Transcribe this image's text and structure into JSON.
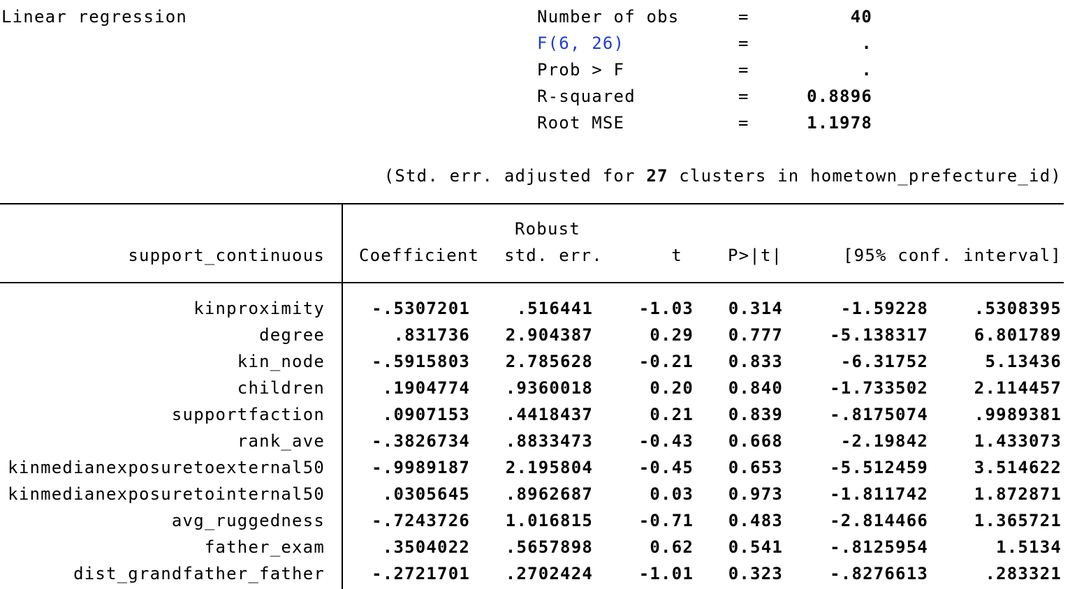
{
  "title": "Linear regression",
  "stats": [
    {
      "label": "Number of obs",
      "eq": "=",
      "value": "40",
      "link": false
    },
    {
      "label": "F(6, 26)",
      "eq": "=",
      "value": ".",
      "link": true
    },
    {
      "label": "Prob > F",
      "eq": "=",
      "value": ".",
      "link": false
    },
    {
      "label": "R-squared",
      "eq": "=",
      "value": "0.8896",
      "link": false
    },
    {
      "label": "Root MSE",
      "eq": "=",
      "value": "1.1978",
      "link": false
    }
  ],
  "note": {
    "prefix": "(Std. err. adjusted for ",
    "clusters": "27",
    "suffix": " clusters in hometown_prefecture_id)"
  },
  "table": {
    "depvar": "support_continuous",
    "head_robust": "Robust",
    "headers": [
      "Coefficient",
      "std. err.",
      "t",
      "P>|t|",
      "[95% conf. interval]"
    ],
    "rows": [
      {
        "name": "kinproximity",
        "coef": "-.5307201",
        "se": ".516441",
        "t": "-1.03",
        "p": "0.314",
        "lo": "-1.59228",
        "hi": ".5308395"
      },
      {
        "name": "degree",
        "coef": ".831736",
        "se": "2.904387",
        "t": "0.29",
        "p": "0.777",
        "lo": "-5.138317",
        "hi": "6.801789"
      },
      {
        "name": "kin_node",
        "coef": "-.5915803",
        "se": "2.785628",
        "t": "-0.21",
        "p": "0.833",
        "lo": "-6.31752",
        "hi": "5.13436"
      },
      {
        "name": "children",
        "coef": ".1904774",
        "se": ".9360018",
        "t": "0.20",
        "p": "0.840",
        "lo": "-1.733502",
        "hi": "2.114457"
      },
      {
        "name": "supportfaction",
        "coef": ".0907153",
        "se": ".4418437",
        "t": "0.21",
        "p": "0.839",
        "lo": "-.8175074",
        "hi": ".9989381"
      },
      {
        "name": "rank_ave",
        "coef": "-.3826734",
        "se": ".8833473",
        "t": "-0.43",
        "p": "0.668",
        "lo": "-2.19842",
        "hi": "1.433073"
      },
      {
        "name": "kinmedianexposuretoexternal50",
        "coef": "-.9989187",
        "se": "2.195804",
        "t": "-0.45",
        "p": "0.653",
        "lo": "-5.512459",
        "hi": "3.514622"
      },
      {
        "name": "kinmedianexposuretointernal50",
        "coef": ".0305645",
        "se": ".8962687",
        "t": "0.03",
        "p": "0.973",
        "lo": "-1.811742",
        "hi": "1.872871"
      },
      {
        "name": "avg_ruggedness",
        "coef": "-.7243726",
        "se": "1.016815",
        "t": "-0.71",
        "p": "0.483",
        "lo": "-2.814466",
        "hi": "1.365721"
      },
      {
        "name": "father_exam",
        "coef": ".3504022",
        "se": ".5657898",
        "t": "0.62",
        "p": "0.541",
        "lo": "-.8125954",
        "hi": "1.5134"
      },
      {
        "name": "dist_grandfather_father",
        "coef": "-.2721701",
        "se": ".2702424",
        "t": "-1.01",
        "p": "0.323",
        "lo": "-.8276613",
        "hi": ".283321"
      }
    ]
  }
}
